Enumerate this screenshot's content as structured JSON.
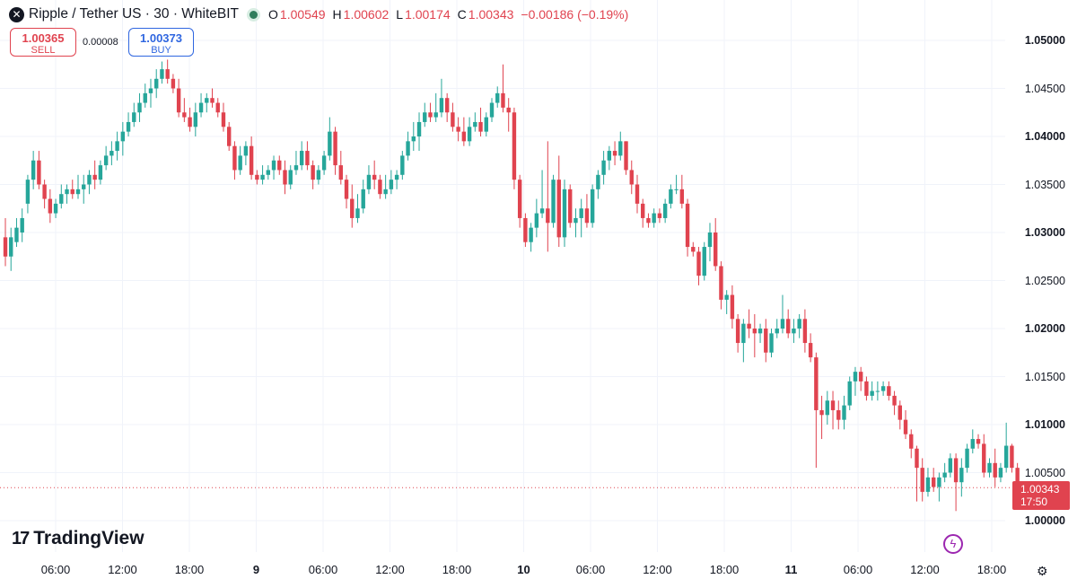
{
  "header": {
    "symbol_icon": "xrp-logo-icon",
    "title": "Ripple / Tether US · 30 · WhiteBIT",
    "open_label": "O",
    "open": "1.00549",
    "high_label": "H",
    "high": "1.00602",
    "low_label": "L",
    "low": "1.00174",
    "close_label": "C",
    "close": "1.00343",
    "change": "−0.00186 (−0.19%)"
  },
  "trade": {
    "sell_price": "1.00365",
    "sell_label": "SELL",
    "spread": "0.00008",
    "buy_price": "1.00373",
    "buy_label": "BUY"
  },
  "last_price": {
    "price": "1.00343",
    "countdown": "17:50"
  },
  "brand": {
    "logo_mark": "17",
    "name": "TradingView"
  },
  "icons": {
    "bolt": "lightning-icon",
    "settings": "gear-icon"
  },
  "colors": {
    "up": "#26a69a",
    "down": "#e0434f",
    "grid": "#f0f3fa",
    "last_line": "#e0434f"
  },
  "chart_data": {
    "type": "candlestick",
    "interval_minutes": 30,
    "x_ticks": [
      "06:00",
      "12:00",
      "18:00",
      "9",
      "06:00",
      "12:00",
      "18:00",
      "10",
      "06:00",
      "12:00",
      "18:00",
      "11",
      "06:00",
      "12:00",
      "18:00"
    ],
    "y_ticks": [
      "1.00000",
      "1.00500",
      "1.01000",
      "1.01500",
      "1.02000",
      "1.02500",
      "1.03000",
      "1.03500",
      "1.04000",
      "1.04500",
      "1.05000"
    ],
    "ylim": [
      1.0,
      1.05
    ],
    "grid": true,
    "last_value": 1.00343,
    "candles": [
      {
        "o": 1.0295,
        "h": 1.0315,
        "l": 1.0265,
        "c": 1.0275
      },
      {
        "o": 1.0275,
        "h": 1.0305,
        "l": 1.026,
        "c": 1.0295
      },
      {
        "o": 1.029,
        "h": 1.0315,
        "l": 1.0285,
        "c": 1.0305
      },
      {
        "o": 1.03,
        "h": 1.0325,
        "l": 1.029,
        "c": 1.0315
      },
      {
        "o": 1.033,
        "h": 1.036,
        "l": 1.032,
        "c": 1.0355
      },
      {
        "o": 1.0355,
        "h": 1.0385,
        "l": 1.0345,
        "c": 1.0375
      },
      {
        "o": 1.0375,
        "h": 1.0385,
        "l": 1.0345,
        "c": 1.035
      },
      {
        "o": 1.035,
        "h": 1.0355,
        "l": 1.0325,
        "c": 1.0335
      },
      {
        "o": 1.0335,
        "h": 1.0345,
        "l": 1.031,
        "c": 1.032
      },
      {
        "o": 1.032,
        "h": 1.0335,
        "l": 1.0315,
        "c": 1.033
      },
      {
        "o": 1.033,
        "h": 1.035,
        "l": 1.0325,
        "c": 1.034
      },
      {
        "o": 1.034,
        "h": 1.035,
        "l": 1.033,
        "c": 1.0345
      },
      {
        "o": 1.0345,
        "h": 1.0355,
        "l": 1.0335,
        "c": 1.034
      },
      {
        "o": 1.034,
        "h": 1.036,
        "l": 1.0335,
        "c": 1.0345
      },
      {
        "o": 1.0345,
        "h": 1.036,
        "l": 1.033,
        "c": 1.035
      },
      {
        "o": 1.035,
        "h": 1.0365,
        "l": 1.034,
        "c": 1.036
      },
      {
        "o": 1.036,
        "h": 1.0375,
        "l": 1.0345,
        "c": 1.0355
      },
      {
        "o": 1.0355,
        "h": 1.0375,
        "l": 1.035,
        "c": 1.037
      },
      {
        "o": 1.037,
        "h": 1.039,
        "l": 1.0365,
        "c": 1.038
      },
      {
        "o": 1.038,
        "h": 1.0395,
        "l": 1.037,
        "c": 1.0385
      },
      {
        "o": 1.0385,
        "h": 1.0405,
        "l": 1.0375,
        "c": 1.0395
      },
      {
        "o": 1.0395,
        "h": 1.0415,
        "l": 1.038,
        "c": 1.0405
      },
      {
        "o": 1.0405,
        "h": 1.0425,
        "l": 1.04,
        "c": 1.0415
      },
      {
        "o": 1.0415,
        "h": 1.0435,
        "l": 1.041,
        "c": 1.0425
      },
      {
        "o": 1.0425,
        "h": 1.0445,
        "l": 1.0415,
        "c": 1.0435
      },
      {
        "o": 1.0435,
        "h": 1.0455,
        "l": 1.043,
        "c": 1.0445
      },
      {
        "o": 1.0445,
        "h": 1.046,
        "l": 1.043,
        "c": 1.045
      },
      {
        "o": 1.045,
        "h": 1.047,
        "l": 1.044,
        "c": 1.046
      },
      {
        "o": 1.046,
        "h": 1.0478,
        "l": 1.0455,
        "c": 1.047
      },
      {
        "o": 1.047,
        "h": 1.048,
        "l": 1.0455,
        "c": 1.046
      },
      {
        "o": 1.046,
        "h": 1.0465,
        "l": 1.0445,
        "c": 1.045
      },
      {
        "o": 1.045,
        "h": 1.046,
        "l": 1.042,
        "c": 1.0425
      },
      {
        "o": 1.0425,
        "h": 1.044,
        "l": 1.0415,
        "c": 1.042
      },
      {
        "o": 1.042,
        "h": 1.043,
        "l": 1.0405,
        "c": 1.041
      },
      {
        "o": 1.041,
        "h": 1.0435,
        "l": 1.04,
        "c": 1.0425
      },
      {
        "o": 1.0425,
        "h": 1.0445,
        "l": 1.042,
        "c": 1.0435
      },
      {
        "o": 1.0435,
        "h": 1.0445,
        "l": 1.0425,
        "c": 1.044
      },
      {
        "o": 1.044,
        "h": 1.045,
        "l": 1.043,
        "c": 1.0435
      },
      {
        "o": 1.0435,
        "h": 1.044,
        "l": 1.042,
        "c": 1.0425
      },
      {
        "o": 1.0425,
        "h": 1.0435,
        "l": 1.0405,
        "c": 1.041
      },
      {
        "o": 1.041,
        "h": 1.0415,
        "l": 1.0385,
        "c": 1.039
      },
      {
        "o": 1.039,
        "h": 1.0395,
        "l": 1.0355,
        "c": 1.0365
      },
      {
        "o": 1.0365,
        "h": 1.039,
        "l": 1.036,
        "c": 1.038
      },
      {
        "o": 1.038,
        "h": 1.0395,
        "l": 1.037,
        "c": 1.039
      },
      {
        "o": 1.039,
        "h": 1.04,
        "l": 1.0355,
        "c": 1.036
      },
      {
        "o": 1.036,
        "h": 1.0365,
        "l": 1.035,
        "c": 1.0355
      },
      {
        "o": 1.0355,
        "h": 1.037,
        "l": 1.035,
        "c": 1.036
      },
      {
        "o": 1.036,
        "h": 1.037,
        "l": 1.0355,
        "c": 1.0365
      },
      {
        "o": 1.0365,
        "h": 1.038,
        "l": 1.0355,
        "c": 1.0375
      },
      {
        "o": 1.0375,
        "h": 1.038,
        "l": 1.036,
        "c": 1.0365
      },
      {
        "o": 1.0365,
        "h": 1.0375,
        "l": 1.034,
        "c": 1.035
      },
      {
        "o": 1.035,
        "h": 1.037,
        "l": 1.0345,
        "c": 1.0365
      },
      {
        "o": 1.0365,
        "h": 1.0385,
        "l": 1.036,
        "c": 1.037
      },
      {
        "o": 1.037,
        "h": 1.0395,
        "l": 1.0365,
        "c": 1.0385
      },
      {
        "o": 1.0385,
        "h": 1.0395,
        "l": 1.0365,
        "c": 1.037
      },
      {
        "o": 1.037,
        "h": 1.0375,
        "l": 1.0345,
        "c": 1.0355
      },
      {
        "o": 1.0355,
        "h": 1.037,
        "l": 1.035,
        "c": 1.0365
      },
      {
        "o": 1.0365,
        "h": 1.0385,
        "l": 1.036,
        "c": 1.038
      },
      {
        "o": 1.038,
        "h": 1.042,
        "l": 1.0375,
        "c": 1.0405
      },
      {
        "o": 1.0405,
        "h": 1.041,
        "l": 1.036,
        "c": 1.037
      },
      {
        "o": 1.037,
        "h": 1.0385,
        "l": 1.035,
        "c": 1.0355
      },
      {
        "o": 1.0355,
        "h": 1.036,
        "l": 1.0325,
        "c": 1.0335
      },
      {
        "o": 1.0335,
        "h": 1.035,
        "l": 1.0305,
        "c": 1.0315
      },
      {
        "o": 1.0315,
        "h": 1.034,
        "l": 1.031,
        "c": 1.0325
      },
      {
        "o": 1.0325,
        "h": 1.0355,
        "l": 1.032,
        "c": 1.0345
      },
      {
        "o": 1.0345,
        "h": 1.037,
        "l": 1.034,
        "c": 1.036
      },
      {
        "o": 1.036,
        "h": 1.0375,
        "l": 1.0345,
        "c": 1.0355
      },
      {
        "o": 1.0355,
        "h": 1.036,
        "l": 1.0335,
        "c": 1.034
      },
      {
        "o": 1.034,
        "h": 1.036,
        "l": 1.0335,
        "c": 1.0345
      },
      {
        "o": 1.0345,
        "h": 1.0365,
        "l": 1.034,
        "c": 1.0355
      },
      {
        "o": 1.0355,
        "h": 1.0365,
        "l": 1.0345,
        "c": 1.036
      },
      {
        "o": 1.036,
        "h": 1.0385,
        "l": 1.0355,
        "c": 1.038
      },
      {
        "o": 1.038,
        "h": 1.0405,
        "l": 1.0375,
        "c": 1.0395
      },
      {
        "o": 1.0395,
        "h": 1.0415,
        "l": 1.0385,
        "c": 1.04
      },
      {
        "o": 1.04,
        "h": 1.0425,
        "l": 1.0385,
        "c": 1.0415
      },
      {
        "o": 1.0415,
        "h": 1.0435,
        "l": 1.041,
        "c": 1.0425
      },
      {
        "o": 1.0425,
        "h": 1.0435,
        "l": 1.0415,
        "c": 1.042
      },
      {
        "o": 1.042,
        "h": 1.0445,
        "l": 1.0415,
        "c": 1.0425
      },
      {
        "o": 1.0425,
        "h": 1.046,
        "l": 1.042,
        "c": 1.044
      },
      {
        "o": 1.044,
        "h": 1.0445,
        "l": 1.0415,
        "c": 1.0425
      },
      {
        "o": 1.0425,
        "h": 1.0435,
        "l": 1.0405,
        "c": 1.041
      },
      {
        "o": 1.041,
        "h": 1.042,
        "l": 1.0395,
        "c": 1.0405
      },
      {
        "o": 1.0405,
        "h": 1.042,
        "l": 1.039,
        "c": 1.0395
      },
      {
        "o": 1.0395,
        "h": 1.042,
        "l": 1.039,
        "c": 1.041
      },
      {
        "o": 1.041,
        "h": 1.0425,
        "l": 1.0405,
        "c": 1.0415
      },
      {
        "o": 1.0415,
        "h": 1.043,
        "l": 1.04,
        "c": 1.0405
      },
      {
        "o": 1.0405,
        "h": 1.0425,
        "l": 1.04,
        "c": 1.042
      },
      {
        "o": 1.042,
        "h": 1.044,
        "l": 1.0415,
        "c": 1.0435
      },
      {
        "o": 1.0435,
        "h": 1.0452,
        "l": 1.043,
        "c": 1.0445
      },
      {
        "o": 1.0445,
        "h": 1.0475,
        "l": 1.0425,
        "c": 1.043
      },
      {
        "o": 1.043,
        "h": 1.044,
        "l": 1.0405,
        "c": 1.0425
      },
      {
        "o": 1.0425,
        "h": 1.043,
        "l": 1.0345,
        "c": 1.0355
      },
      {
        "o": 1.0355,
        "h": 1.036,
        "l": 1.0305,
        "c": 1.0315
      },
      {
        "o": 1.0315,
        "h": 1.032,
        "l": 1.0285,
        "c": 1.029
      },
      {
        "o": 1.029,
        "h": 1.031,
        "l": 1.028,
        "c": 1.0305
      },
      {
        "o": 1.0305,
        "h": 1.0335,
        "l": 1.0295,
        "c": 1.032
      },
      {
        "o": 1.032,
        "h": 1.0365,
        "l": 1.0315,
        "c": 1.0325
      },
      {
        "o": 1.0325,
        "h": 1.0395,
        "l": 1.028,
        "c": 1.031
      },
      {
        "o": 1.031,
        "h": 1.036,
        "l": 1.0305,
        "c": 1.0355
      },
      {
        "o": 1.0355,
        "h": 1.038,
        "l": 1.0285,
        "c": 1.0295
      },
      {
        "o": 1.0295,
        "h": 1.0355,
        "l": 1.0285,
        "c": 1.0345
      },
      {
        "o": 1.0345,
        "h": 1.035,
        "l": 1.0305,
        "c": 1.031
      },
      {
        "o": 1.031,
        "h": 1.0325,
        "l": 1.0295,
        "c": 1.0315
      },
      {
        "o": 1.0315,
        "h": 1.0335,
        "l": 1.0295,
        "c": 1.0325
      },
      {
        "o": 1.0325,
        "h": 1.034,
        "l": 1.0305,
        "c": 1.031
      },
      {
        "o": 1.031,
        "h": 1.035,
        "l": 1.0305,
        "c": 1.0345
      },
      {
        "o": 1.0345,
        "h": 1.0365,
        "l": 1.0335,
        "c": 1.036
      },
      {
        "o": 1.036,
        "h": 1.0385,
        "l": 1.035,
        "c": 1.0375
      },
      {
        "o": 1.0375,
        "h": 1.039,
        "l": 1.0365,
        "c": 1.0385
      },
      {
        "o": 1.0385,
        "h": 1.0395,
        "l": 1.037,
        "c": 1.038
      },
      {
        "o": 1.038,
        "h": 1.0405,
        "l": 1.0375,
        "c": 1.0395
      },
      {
        "o": 1.0395,
        "h": 1.0395,
        "l": 1.036,
        "c": 1.0365
      },
      {
        "o": 1.0365,
        "h": 1.0375,
        "l": 1.034,
        "c": 1.035
      },
      {
        "o": 1.035,
        "h": 1.036,
        "l": 1.032,
        "c": 1.033
      },
      {
        "o": 1.033,
        "h": 1.0335,
        "l": 1.0305,
        "c": 1.0315
      },
      {
        "o": 1.0315,
        "h": 1.032,
        "l": 1.0305,
        "c": 1.031
      },
      {
        "o": 1.031,
        "h": 1.0325,
        "l": 1.0305,
        "c": 1.032
      },
      {
        "o": 1.032,
        "h": 1.0325,
        "l": 1.031,
        "c": 1.0315
      },
      {
        "o": 1.0315,
        "h": 1.0335,
        "l": 1.031,
        "c": 1.033
      },
      {
        "o": 1.033,
        "h": 1.035,
        "l": 1.0325,
        "c": 1.0345
      },
      {
        "o": 1.0345,
        "h": 1.036,
        "l": 1.034,
        "c": 1.0345
      },
      {
        "o": 1.0345,
        "h": 1.036,
        "l": 1.0325,
        "c": 1.033
      },
      {
        "o": 1.033,
        "h": 1.0335,
        "l": 1.0275,
        "c": 1.0285
      },
      {
        "o": 1.0285,
        "h": 1.029,
        "l": 1.0275,
        "c": 1.028
      },
      {
        "o": 1.028,
        "h": 1.0285,
        "l": 1.0245,
        "c": 1.0255
      },
      {
        "o": 1.0255,
        "h": 1.029,
        "l": 1.025,
        "c": 1.0285
      },
      {
        "o": 1.0285,
        "h": 1.031,
        "l": 1.027,
        "c": 1.03
      },
      {
        "o": 1.03,
        "h": 1.0315,
        "l": 1.026,
        "c": 1.0265
      },
      {
        "o": 1.0265,
        "h": 1.027,
        "l": 1.022,
        "c": 1.023
      },
      {
        "o": 1.023,
        "h": 1.024,
        "l": 1.0215,
        "c": 1.0235
      },
      {
        "o": 1.0235,
        "h": 1.0245,
        "l": 1.02,
        "c": 1.021
      },
      {
        "o": 1.021,
        "h": 1.0215,
        "l": 1.0175,
        "c": 1.0185
      },
      {
        "o": 1.0185,
        "h": 1.021,
        "l": 1.0165,
        "c": 1.0205
      },
      {
        "o": 1.0205,
        "h": 1.022,
        "l": 1.019,
        "c": 1.02
      },
      {
        "o": 1.02,
        "h": 1.0215,
        "l": 1.017,
        "c": 1.0195
      },
      {
        "o": 1.0195,
        "h": 1.0205,
        "l": 1.0185,
        "c": 1.02
      },
      {
        "o": 1.02,
        "h": 1.021,
        "l": 1.0165,
        "c": 1.0175
      },
      {
        "o": 1.0175,
        "h": 1.02,
        "l": 1.017,
        "c": 1.0195
      },
      {
        "o": 1.0195,
        "h": 1.021,
        "l": 1.019,
        "c": 1.02
      },
      {
        "o": 1.02,
        "h": 1.0235,
        "l": 1.0195,
        "c": 1.021
      },
      {
        "o": 1.021,
        "h": 1.022,
        "l": 1.019,
        "c": 1.0195
      },
      {
        "o": 1.0195,
        "h": 1.021,
        "l": 1.0185,
        "c": 1.02
      },
      {
        "o": 1.02,
        "h": 1.0215,
        "l": 1.019,
        "c": 1.021
      },
      {
        "o": 1.021,
        "h": 1.022,
        "l": 1.0175,
        "c": 1.0185
      },
      {
        "o": 1.0185,
        "h": 1.0195,
        "l": 1.0165,
        "c": 1.017
      },
      {
        "o": 1.017,
        "h": 1.0175,
        "l": 1.0055,
        "c": 1.0115
      },
      {
        "o": 1.0115,
        "h": 1.013,
        "l": 1.0085,
        "c": 1.011
      },
      {
        "o": 1.011,
        "h": 1.0135,
        "l": 1.01,
        "c": 1.0125
      },
      {
        "o": 1.0125,
        "h": 1.0135,
        "l": 1.0095,
        "c": 1.0115
      },
      {
        "o": 1.0115,
        "h": 1.0125,
        "l": 1.0095,
        "c": 1.0105
      },
      {
        "o": 1.0105,
        "h": 1.013,
        "l": 1.0095,
        "c": 1.012
      },
      {
        "o": 1.012,
        "h": 1.015,
        "l": 1.0115,
        "c": 1.0145
      },
      {
        "o": 1.0145,
        "h": 1.016,
        "l": 1.013,
        "c": 1.0155
      },
      {
        "o": 1.0155,
        "h": 1.016,
        "l": 1.0135,
        "c": 1.0145
      },
      {
        "o": 1.0145,
        "h": 1.015,
        "l": 1.0125,
        "c": 1.013
      },
      {
        "o": 1.013,
        "h": 1.0145,
        "l": 1.0125,
        "c": 1.0135
      },
      {
        "o": 1.0135,
        "h": 1.0145,
        "l": 1.0125,
        "c": 1.0135
      },
      {
        "o": 1.0135,
        "h": 1.0145,
        "l": 1.013,
        "c": 1.014
      },
      {
        "o": 1.014,
        "h": 1.0145,
        "l": 1.0125,
        "c": 1.013
      },
      {
        "o": 1.013,
        "h": 1.0135,
        "l": 1.011,
        "c": 1.012
      },
      {
        "o": 1.012,
        "h": 1.0125,
        "l": 1.0095,
        "c": 1.0105
      },
      {
        "o": 1.0105,
        "h": 1.0115,
        "l": 1.0085,
        "c": 1.009
      },
      {
        "o": 1.009,
        "h": 1.0095,
        "l": 1.0065,
        "c": 1.0075
      },
      {
        "o": 1.0075,
        "h": 1.0078,
        "l": 1.002,
        "c": 1.0055
      },
      {
        "o": 1.0055,
        "h": 1.0065,
        "l": 1.002,
        "c": 1.003
      },
      {
        "o": 1.003,
        "h": 1.0055,
        "l": 1.0025,
        "c": 1.0045
      },
      {
        "o": 1.0045,
        "h": 1.0055,
        "l": 1.003,
        "c": 1.0035
      },
      {
        "o": 1.0035,
        "h": 1.005,
        "l": 1.002,
        "c": 1.0045
      },
      {
        "o": 1.0045,
        "h": 1.006,
        "l": 1.004,
        "c": 1.005
      },
      {
        "o": 1.005,
        "h": 1.007,
        "l": 1.0045,
        "c": 1.0065
      },
      {
        "o": 1.0065,
        "h": 1.007,
        "l": 1.001,
        "c": 1.004
      },
      {
        "o": 1.004,
        "h": 1.0065,
        "l": 1.0025,
        "c": 1.0055
      },
      {
        "o": 1.0055,
        "h": 1.008,
        "l": 1.005,
        "c": 1.0075
      },
      {
        "o": 1.0075,
        "h": 1.0095,
        "l": 1.007,
        "c": 1.0085
      },
      {
        "o": 1.0085,
        "h": 1.009,
        "l": 1.0075,
        "c": 1.008
      },
      {
        "o": 1.008,
        "h": 1.009,
        "l": 1.0045,
        "c": 1.005
      },
      {
        "o": 1.005,
        "h": 1.0065,
        "l": 1.0045,
        "c": 1.006
      },
      {
        "o": 1.006,
        "h": 1.0075,
        "l": 1.0035,
        "c": 1.0045
      },
      {
        "o": 1.0045,
        "h": 1.006,
        "l": 1.004,
        "c": 1.0055
      },
      {
        "o": 1.0055,
        "h": 1.0102,
        "l": 1.005,
        "c": 1.0078
      },
      {
        "o": 1.0078,
        "h": 1.008,
        "l": 1.005,
        "c": 1.0055
      },
      {
        "o": 1.0055,
        "h": 1.006,
        "l": 1.0017,
        "c": 1.0034
      }
    ]
  }
}
